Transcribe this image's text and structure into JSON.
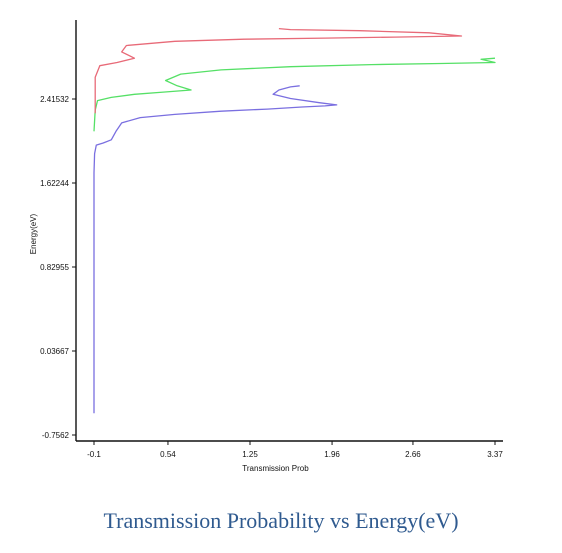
{
  "caption": "Transmission Probability vs Energy(eV)",
  "chart_data": {
    "type": "line",
    "title": "",
    "xlabel": "Transmission  Prob",
    "ylabel": "Energy(eV)",
    "xlim": [
      -0.1,
      3.37
    ],
    "ylim": [
      -0.7562,
      3.38
    ],
    "x_ticks": [
      "-0.1",
      "0.54",
      "1.25",
      "1.96",
      "2.66",
      "3.37"
    ],
    "x_tick_values": [
      -0.1,
      0.54,
      1.25,
      1.96,
      2.66,
      3.37
    ],
    "y_ticks": [
      "-0.7562",
      "0.03667",
      "0.82955",
      "1.62244",
      "2.41532"
    ],
    "y_tick_values": [
      -0.7562,
      0.03667,
      0.82955,
      1.62244,
      2.41532
    ],
    "grid": false,
    "series": [
      {
        "color": "#7a6fe0",
        "points": [
          [
            -0.1,
            -0.55
          ],
          [
            -0.1,
            0.4
          ],
          [
            -0.1,
            1.2
          ],
          [
            -0.1,
            1.72
          ],
          [
            -0.095,
            1.9
          ],
          [
            -0.08,
            1.98
          ],
          [
            -0.02,
            2.0
          ],
          [
            0.05,
            2.03
          ],
          [
            0.09,
            2.11
          ],
          [
            0.14,
            2.19
          ],
          [
            0.3,
            2.24
          ],
          [
            0.6,
            2.27
          ],
          [
            1.0,
            2.3
          ],
          [
            1.4,
            2.32
          ],
          [
            1.7,
            2.34
          ],
          [
            1.9,
            2.35
          ],
          [
            2.0,
            2.36
          ],
          [
            1.85,
            2.38
          ],
          [
            1.6,
            2.42
          ],
          [
            1.45,
            2.46
          ],
          [
            1.5,
            2.5
          ],
          [
            1.6,
            2.53
          ],
          [
            1.68,
            2.54
          ]
        ]
      },
      {
        "color": "#55e066",
        "points": [
          [
            -0.1,
            2.11
          ],
          [
            -0.09,
            2.31
          ],
          [
            -0.07,
            2.4
          ],
          [
            0.05,
            2.43
          ],
          [
            0.25,
            2.46
          ],
          [
            0.5,
            2.48
          ],
          [
            0.74,
            2.5
          ],
          [
            0.62,
            2.54
          ],
          [
            0.52,
            2.59
          ],
          [
            0.65,
            2.65
          ],
          [
            1.0,
            2.69
          ],
          [
            1.6,
            2.72
          ],
          [
            2.3,
            2.74
          ],
          [
            2.9,
            2.75
          ],
          [
            3.37,
            2.76
          ],
          [
            3.25,
            2.79
          ],
          [
            3.37,
            2.8
          ]
        ]
      },
      {
        "color": "#e86a78",
        "points": [
          [
            -0.09,
            2.28
          ],
          [
            -0.09,
            2.62
          ],
          [
            -0.05,
            2.73
          ],
          [
            0.1,
            2.76
          ],
          [
            0.25,
            2.8
          ],
          [
            0.14,
            2.86
          ],
          [
            0.18,
            2.92
          ],
          [
            0.6,
            2.96
          ],
          [
            1.2,
            2.98
          ],
          [
            1.9,
            2.99
          ],
          [
            2.5,
            3.0
          ],
          [
            3.08,
            3.01
          ],
          [
            2.8,
            3.04
          ],
          [
            2.2,
            3.06
          ],
          [
            1.6,
            3.07
          ],
          [
            1.5,
            3.08
          ]
        ]
      }
    ]
  }
}
